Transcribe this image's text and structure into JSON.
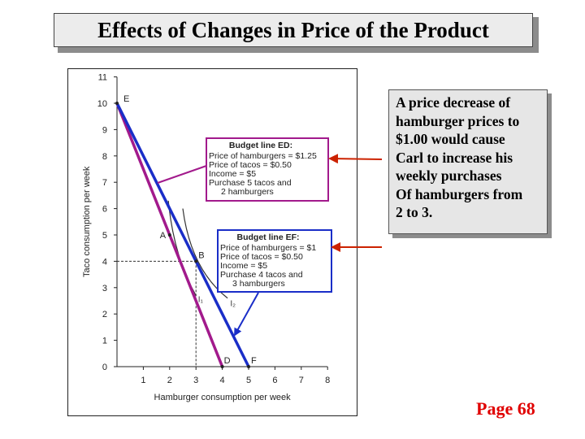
{
  "title": "Effects of Changes in Price of the Product",
  "callout": {
    "lines": [
      "A price decrease of",
      "hamburger prices to",
      "$1.00 would cause",
      "Carl to increase his",
      "weekly purchases",
      "Of hamburgers from",
      "2 to 3."
    ]
  },
  "page_label": "Page 68",
  "colors": {
    "budget_ed": "#a21a8c",
    "budget_ef": "#1a2ec8",
    "arrow": "#cc2200",
    "page_label": "#e00000"
  },
  "chart_data": {
    "type": "line",
    "title": "",
    "xlabel": "Hamburger consumption per week",
    "ylabel": "Taco consumption per week",
    "xlim": [
      0,
      8
    ],
    "ylim": [
      0,
      11
    ],
    "x_ticks": [
      "1",
      "2",
      "3",
      "4",
      "5",
      "6",
      "7",
      "8"
    ],
    "y_ticks": [
      "0",
      "1",
      "2",
      "3",
      "4",
      "5",
      "6",
      "7",
      "8",
      "9",
      "10",
      "11"
    ],
    "series": [
      {
        "label": "Budget line ED",
        "x": [
          0,
          4
        ],
        "y": [
          10,
          0
        ]
      },
      {
        "label": "Budget line EF",
        "x": [
          0,
          5
        ],
        "y": [
          10,
          0
        ]
      }
    ],
    "points": [
      {
        "label": "E",
        "x": 0,
        "y": 10
      },
      {
        "label": "A",
        "x": 2,
        "y": 5
      },
      {
        "label": "B",
        "x": 3,
        "y": 4
      },
      {
        "label": "D",
        "x": 4,
        "y": 0
      },
      {
        "label": "F",
        "x": 5,
        "y": 0
      }
    ],
    "indifference_labels": [
      "I₁",
      "I₂"
    ],
    "legend_ed": {
      "title": "Budget line ED:",
      "lines": [
        "Price of hamburgers = $1.25",
        "Price of tacos = $0.50",
        "Income = $5",
        "Purchase 5 tacos and",
        "2 hamburgers"
      ]
    },
    "legend_ef": {
      "title": "Budget line EF:",
      "lines": [
        "Price of hamburgers = $1",
        "Price of tacos = $0.50",
        "Income = $5",
        "Purchase 4 tacos and",
        "3 hamburgers"
      ]
    }
  }
}
